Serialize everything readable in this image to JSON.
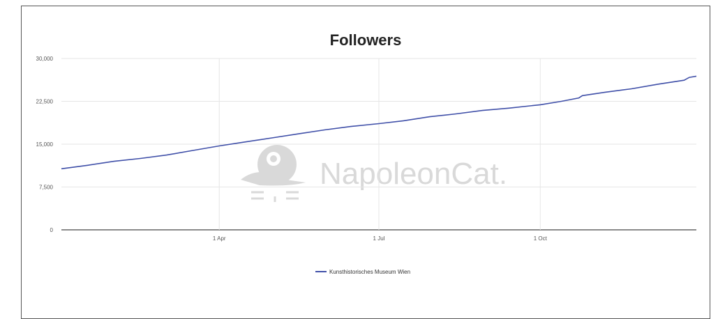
{
  "chart_data": {
    "type": "line",
    "title": "Followers",
    "xlabel": "",
    "ylabel": "",
    "ylim": [
      0,
      30000
    ],
    "yticks": [
      0,
      7500,
      15000,
      22500,
      30000
    ],
    "ytick_labels": [
      "0",
      "7,500",
      "15,000",
      "22,500",
      "30,000"
    ],
    "x_range_days": [
      0,
      362
    ],
    "xtick_days": [
      90,
      181,
      273
    ],
    "xtick_labels": [
      "1 Apr",
      "1 Jul",
      "1 Oct"
    ],
    "grid": true,
    "legend_position": "bottom",
    "watermark": "NapoleonCat.",
    "series": [
      {
        "name": "Kunsthistorisches Museum Wien",
        "color": "#3f4fa8",
        "points": [
          [
            0,
            10700
          ],
          [
            15,
            11300
          ],
          [
            30,
            12000
          ],
          [
            45,
            12500
          ],
          [
            60,
            13100
          ],
          [
            75,
            13900
          ],
          [
            90,
            14700
          ],
          [
            105,
            15400
          ],
          [
            120,
            16100
          ],
          [
            135,
            16800
          ],
          [
            150,
            17500
          ],
          [
            165,
            18100
          ],
          [
            181,
            18600
          ],
          [
            195,
            19100
          ],
          [
            210,
            19800
          ],
          [
            225,
            20300
          ],
          [
            240,
            20900
          ],
          [
            255,
            21300
          ],
          [
            273,
            21900
          ],
          [
            285,
            22500
          ],
          [
            295,
            23100
          ],
          [
            297,
            23500
          ],
          [
            310,
            24100
          ],
          [
            325,
            24700
          ],
          [
            340,
            25500
          ],
          [
            355,
            26200
          ],
          [
            358,
            26700
          ],
          [
            362,
            26900
          ]
        ]
      }
    ]
  }
}
